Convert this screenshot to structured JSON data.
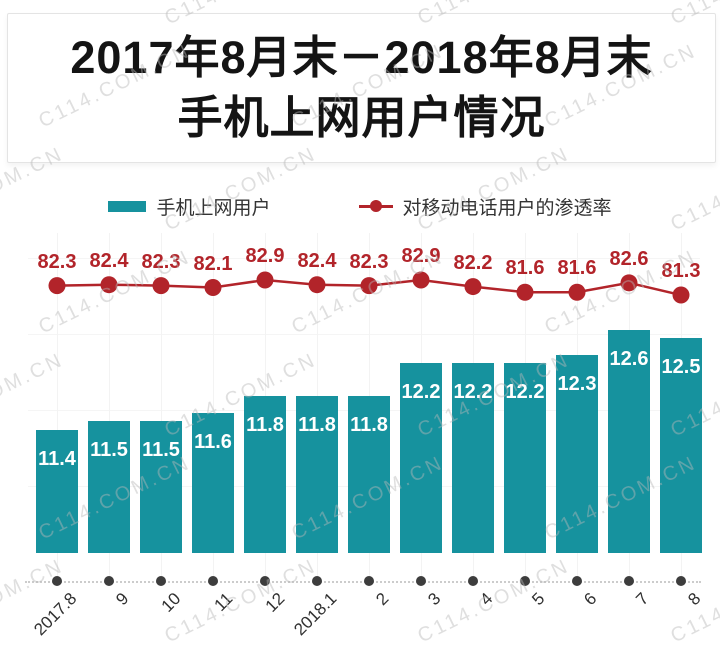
{
  "watermark": {
    "text": "C114.COM.CN"
  },
  "title": {
    "line1": "2017年8月末－2018年8月末",
    "line2": "手机上网用户情况"
  },
  "legend": {
    "bars": "手机上网用户",
    "line": "对移动电话用户的渗透率"
  },
  "colors": {
    "bar": "#16929e",
    "line": "#b2242a",
    "axis_dot": "#3d3d3d"
  },
  "chart_data": {
    "type": "bar",
    "title": "2017年8月末－2018年8月末 手机上网用户情况",
    "categories": [
      "2017.8",
      "9",
      "10",
      "11",
      "12",
      "2018.1",
      "2",
      "3",
      "4",
      "5",
      "6",
      "7",
      "8"
    ],
    "series": [
      {
        "name": "手机上网用户",
        "type": "bar",
        "values": [
          11.4,
          11.5,
          11.5,
          11.6,
          11.8,
          11.8,
          11.8,
          12.2,
          12.2,
          12.2,
          12.3,
          12.6,
          12.5
        ]
      },
      {
        "name": "对移动电话用户的渗透率",
        "type": "line",
        "values": [
          82.3,
          82.4,
          82.3,
          82.1,
          82.9,
          82.4,
          82.3,
          82.9,
          82.2,
          81.6,
          81.6,
          82.6,
          81.3
        ]
      }
    ],
    "legend_position": "top",
    "grid": "faint",
    "xlabel": "",
    "ylabel": ""
  }
}
